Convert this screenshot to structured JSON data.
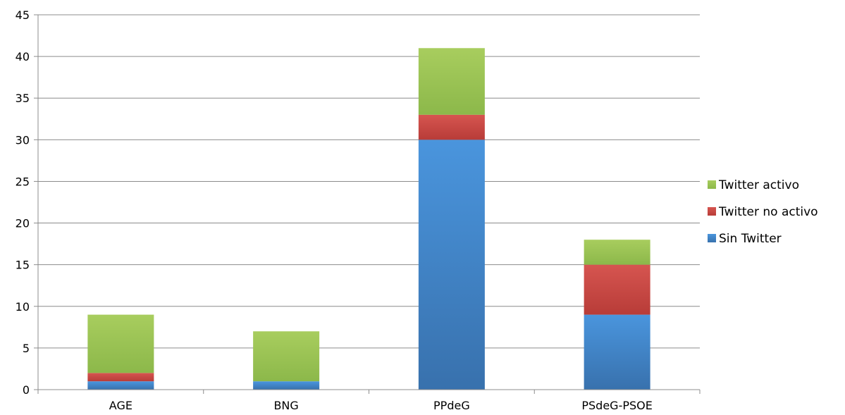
{
  "chart_data": {
    "type": "bar",
    "stacked": true,
    "categories": [
      "AGE",
      "BNG",
      "PPdeG",
      "PSdeG-PSOE"
    ],
    "series": [
      {
        "name": "Sin Twitter",
        "values": [
          1,
          1,
          30,
          9
        ],
        "color": "#4a8fd4"
      },
      {
        "name": "Twitter no activo",
        "values": [
          1,
          0,
          3,
          6
        ],
        "color": "#cd4a45"
      },
      {
        "name": "Twitter activo",
        "values": [
          7,
          6,
          8,
          3
        ],
        "color": "#9cc45a"
      }
    ],
    "legend_order": [
      "Twitter activo",
      "Twitter no activo",
      "Sin Twitter"
    ],
    "ylim": [
      0,
      45
    ],
    "yticks": [
      0,
      5,
      10,
      15,
      20,
      25,
      30,
      35,
      40,
      45
    ],
    "grid": true,
    "legend_position": "right"
  }
}
